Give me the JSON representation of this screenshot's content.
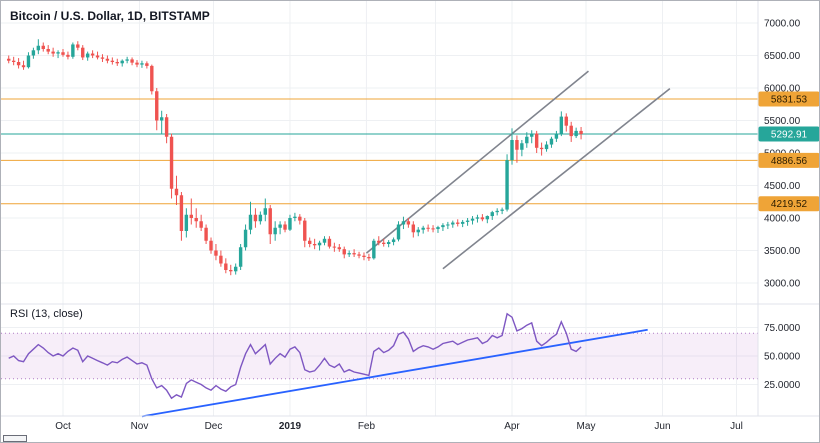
{
  "legend": {
    "title": "Bitcoin / U.S. Dollar, 1D, BITSTAMP",
    "rsi": "RSI (13, close)"
  },
  "colors": {
    "up": "#26a69a",
    "down": "#ef5350",
    "level": "#efa437",
    "level_text": "#2a1c00",
    "last_badge_text": "#ffffff",
    "grid": "#eef0f3",
    "border": "#e0e3eb",
    "axis_text": "#23262f",
    "trend_gray": "#80848e",
    "trend_blue": "#2962ff",
    "rsi_line": "#7e57c2",
    "rsi_band": "#9c27b0",
    "rsi_band_edge": "#b07cc6"
  },
  "chart_data": [
    {
      "type": "candlestick",
      "title": "Bitcoin / U.S. Dollar, 1D, BITSTAMP",
      "symbol": "Bitcoin / U.S. Dollar",
      "interval": "1D",
      "exchange": "BITSTAMP",
      "ylim": [
        3000,
        7000
      ],
      "y_ticks": [
        "7000.00",
        "6500.00",
        "6000.00",
        "5500.00",
        "5000.00",
        "4500.00",
        "4000.00",
        "3500.00",
        "3000.00"
      ],
      "y_tick_values": [
        7000,
        6500,
        6000,
        5500,
        5000,
        4500,
        4000,
        3500,
        3000
      ],
      "x_axis": {
        "day_zero_date": "2018-10-01",
        "first_candle_day_offset": -22,
        "candle_step_days": 2,
        "ticks": [
          {
            "label": "Oct",
            "day": 0
          },
          {
            "label": "Nov",
            "day": 31
          },
          {
            "label": "Dec",
            "day": 61
          },
          {
            "label": "2019",
            "day": 92,
            "bold": true
          },
          {
            "label": "Feb",
            "day": 123
          },
          {
            "label": "Apr",
            "day": 182
          },
          {
            "label": "May",
            "day": 212
          },
          {
            "label": "Jun",
            "day": 243
          },
          {
            "label": "Jul",
            "day": 273
          }
        ],
        "extra_grid_days": [
          151
        ]
      },
      "price_levels": [
        {
          "label": "5831.53",
          "value": 5831.53
        },
        {
          "label": "4886.56",
          "value": 4886.56
        },
        {
          "label": "4219.52",
          "value": 4219.52
        }
      ],
      "last_price": {
        "label": "5292.91",
        "value": 5292.91
      },
      "trendlines": [
        {
          "from_day": 123,
          "from_price": 3460,
          "to_day": 213,
          "to_price": 6260
        },
        {
          "from_day": 154,
          "from_price": 3220,
          "to_day": 246,
          "to_price": 5990
        }
      ],
      "ohlc": [
        [
          6450,
          6500,
          6380,
          6420
        ],
        [
          6420,
          6480,
          6350,
          6400
        ],
        [
          6400,
          6460,
          6300,
          6350
        ],
        [
          6350,
          6420,
          6280,
          6320
        ],
        [
          6320,
          6550,
          6300,
          6500
        ],
        [
          6500,
          6620,
          6450,
          6580
        ],
        [
          6580,
          6750,
          6520,
          6650
        ],
        [
          6650,
          6700,
          6560,
          6600
        ],
        [
          6600,
          6660,
          6520,
          6560
        ],
        [
          6560,
          6620,
          6480,
          6530
        ],
        [
          6530,
          6580,
          6460,
          6550
        ],
        [
          6550,
          6600,
          6480,
          6510
        ],
        [
          6510,
          6560,
          6440,
          6480
        ],
        [
          6480,
          6700,
          6450,
          6670
        ],
        [
          6670,
          6720,
          6580,
          6620
        ],
        [
          6620,
          6660,
          6430,
          6470
        ],
        [
          6470,
          6560,
          6420,
          6530
        ],
        [
          6530,
          6580,
          6460,
          6500
        ],
        [
          6500,
          6560,
          6440,
          6470
        ],
        [
          6470,
          6520,
          6400,
          6450
        ],
        [
          6450,
          6500,
          6380,
          6420
        ],
        [
          6420,
          6470,
          6360,
          6400
        ],
        [
          6400,
          6450,
          6340,
          6380
        ],
        [
          6380,
          6440,
          6330,
          6420
        ],
        [
          6420,
          6480,
          6380,
          6440
        ],
        [
          6440,
          6470,
          6350,
          6390
        ],
        [
          6390,
          6430,
          6320,
          6360
        ],
        [
          6360,
          6420,
          6310,
          6380
        ],
        [
          6380,
          6410,
          6300,
          6340
        ],
        [
          6340,
          6360,
          5900,
          5950
        ],
        [
          5950,
          6000,
          5350,
          5500
        ],
        [
          5500,
          5650,
          5300,
          5550
        ],
        [
          5550,
          5600,
          5150,
          5250
        ],
        [
          5250,
          5300,
          4300,
          4450
        ],
        [
          4450,
          4650,
          4200,
          4350
        ],
        [
          4350,
          4400,
          3650,
          3800
        ],
        [
          3800,
          4150,
          3700,
          4050
        ],
        [
          4050,
          4300,
          3900,
          4000
        ],
        [
          4000,
          4150,
          3850,
          3950
        ],
        [
          3950,
          4050,
          3800,
          3850
        ],
        [
          3850,
          3900,
          3600,
          3650
        ],
        [
          3650,
          3700,
          3450,
          3500
        ],
        [
          3500,
          3600,
          3350,
          3420
        ],
        [
          3420,
          3500,
          3250,
          3300
        ],
        [
          3300,
          3380,
          3150,
          3200
        ],
        [
          3200,
          3280,
          3120,
          3180
        ],
        [
          3180,
          3300,
          3130,
          3250
        ],
        [
          3250,
          3600,
          3200,
          3550
        ],
        [
          3550,
          3900,
          3500,
          3820
        ],
        [
          3820,
          4250,
          3750,
          4050
        ],
        [
          4050,
          4150,
          3850,
          3950
        ],
        [
          3950,
          4100,
          3900,
          4050
        ],
        [
          4050,
          4300,
          3950,
          4150
        ],
        [
          4150,
          4200,
          3600,
          3750
        ],
        [
          3750,
          3950,
          3650,
          3850
        ],
        [
          3850,
          3950,
          3750,
          3900
        ],
        [
          3900,
          3950,
          3780,
          3820
        ],
        [
          3820,
          4050,
          3800,
          4000
        ],
        [
          4000,
          4080,
          3950,
          4020
        ],
        [
          4020,
          4060,
          3900,
          3960
        ],
        [
          3960,
          4000,
          3550,
          3650
        ],
        [
          3650,
          3700,
          3550,
          3600
        ],
        [
          3600,
          3680,
          3520,
          3580
        ],
        [
          3580,
          3650,
          3500,
          3620
        ],
        [
          3620,
          3720,
          3580,
          3680
        ],
        [
          3680,
          3720,
          3530,
          3560
        ],
        [
          3560,
          3620,
          3480,
          3550
        ],
        [
          3550,
          3600,
          3480,
          3520
        ],
        [
          3520,
          3560,
          3380,
          3440
        ],
        [
          3440,
          3500,
          3400,
          3460
        ],
        [
          3460,
          3520,
          3400,
          3440
        ],
        [
          3440,
          3480,
          3380,
          3420
        ],
        [
          3420,
          3470,
          3350,
          3400
        ],
        [
          3400,
          3450,
          3340,
          3380
        ],
        [
          3380,
          3680,
          3360,
          3650
        ],
        [
          3650,
          3720,
          3580,
          3620
        ],
        [
          3620,
          3680,
          3560,
          3600
        ],
        [
          3600,
          3660,
          3550,
          3630
        ],
        [
          3630,
          3700,
          3580,
          3670
        ],
        [
          3670,
          3950,
          3640,
          3900
        ],
        [
          3900,
          4020,
          3830,
          3950
        ],
        [
          3950,
          4000,
          3850,
          3900
        ],
        [
          3900,
          3950,
          3700,
          3780
        ],
        [
          3780,
          3860,
          3720,
          3820
        ],
        [
          3820,
          3880,
          3760,
          3850
        ],
        [
          3850,
          3900,
          3790,
          3840
        ],
        [
          3840,
          3890,
          3780,
          3830
        ],
        [
          3830,
          3880,
          3770,
          3860
        ],
        [
          3860,
          3920,
          3800,
          3890
        ],
        [
          3890,
          3940,
          3830,
          3900
        ],
        [
          3900,
          3960,
          3850,
          3930
        ],
        [
          3930,
          3980,
          3870,
          3910
        ],
        [
          3910,
          3970,
          3860,
          3940
        ],
        [
          3940,
          4000,
          3880,
          3960
        ],
        [
          3960,
          4030,
          3900,
          3990
        ],
        [
          3990,
          4050,
          3930,
          4010
        ],
        [
          4010,
          4060,
          3950,
          3980
        ],
        [
          3980,
          4040,
          3920,
          4030
        ],
        [
          4030,
          4110,
          3970,
          4090
        ],
        [
          4090,
          4150,
          4040,
          4110
        ],
        [
          4110,
          4160,
          4060,
          4130
        ],
        [
          4130,
          4980,
          4100,
          4890
        ],
        [
          4890,
          5380,
          4820,
          5200
        ],
        [
          5200,
          5270,
          4850,
          5050
        ],
        [
          5050,
          5200,
          4950,
          5150
        ],
        [
          5150,
          5320,
          5080,
          5250
        ],
        [
          5250,
          5350,
          5150,
          5300
        ],
        [
          5300,
          5340,
          5000,
          5080
        ],
        [
          5080,
          5160,
          4960,
          5060
        ],
        [
          5060,
          5180,
          5020,
          5130
        ],
        [
          5130,
          5250,
          5080,
          5220
        ],
        [
          5220,
          5340,
          5170,
          5300
        ],
        [
          5300,
          5640,
          5260,
          5560
        ],
        [
          5560,
          5610,
          5330,
          5420
        ],
        [
          5420,
          5480,
          5170,
          5260
        ],
        [
          5260,
          5390,
          5230,
          5340
        ],
        [
          5340,
          5400,
          5210,
          5292.91
        ]
      ]
    },
    {
      "type": "line",
      "title": "RSI (13, close)",
      "ylim": [
        0,
        100
      ],
      "y_ticks": [
        "75.0000",
        "50.0000",
        "25.0000"
      ],
      "y_tick_values": [
        75,
        50,
        25
      ],
      "band": [
        30,
        70
      ],
      "trendline": {
        "from_day": 32,
        "from_value": -3,
        "to_day": 237,
        "to_value": 73
      },
      "values": [
        48,
        50,
        46,
        45,
        52,
        56,
        60,
        57,
        53,
        50,
        52,
        50,
        54,
        57,
        55,
        45,
        50,
        48,
        46,
        44,
        42,
        45,
        44,
        47,
        49,
        46,
        43,
        44,
        42,
        30,
        22,
        24,
        20,
        13,
        16,
        14,
        26,
        29,
        27,
        25,
        22,
        20,
        24,
        21,
        19,
        23,
        25,
        40,
        52,
        60,
        52,
        56,
        60,
        43,
        48,
        52,
        49,
        56,
        58,
        53,
        38,
        36,
        37,
        42,
        48,
        42,
        40,
        43,
        36,
        38,
        36,
        35,
        34,
        33,
        54,
        57,
        53,
        55,
        59,
        69,
        71,
        65,
        54,
        57,
        59,
        58,
        56,
        58,
        61,
        62,
        63,
        60,
        62,
        64,
        65,
        66,
        61,
        63,
        68,
        66,
        68,
        87,
        84,
        72,
        74,
        77,
        79,
        63,
        59,
        62,
        66,
        69,
        80,
        70,
        56,
        54,
        58
      ]
    }
  ]
}
